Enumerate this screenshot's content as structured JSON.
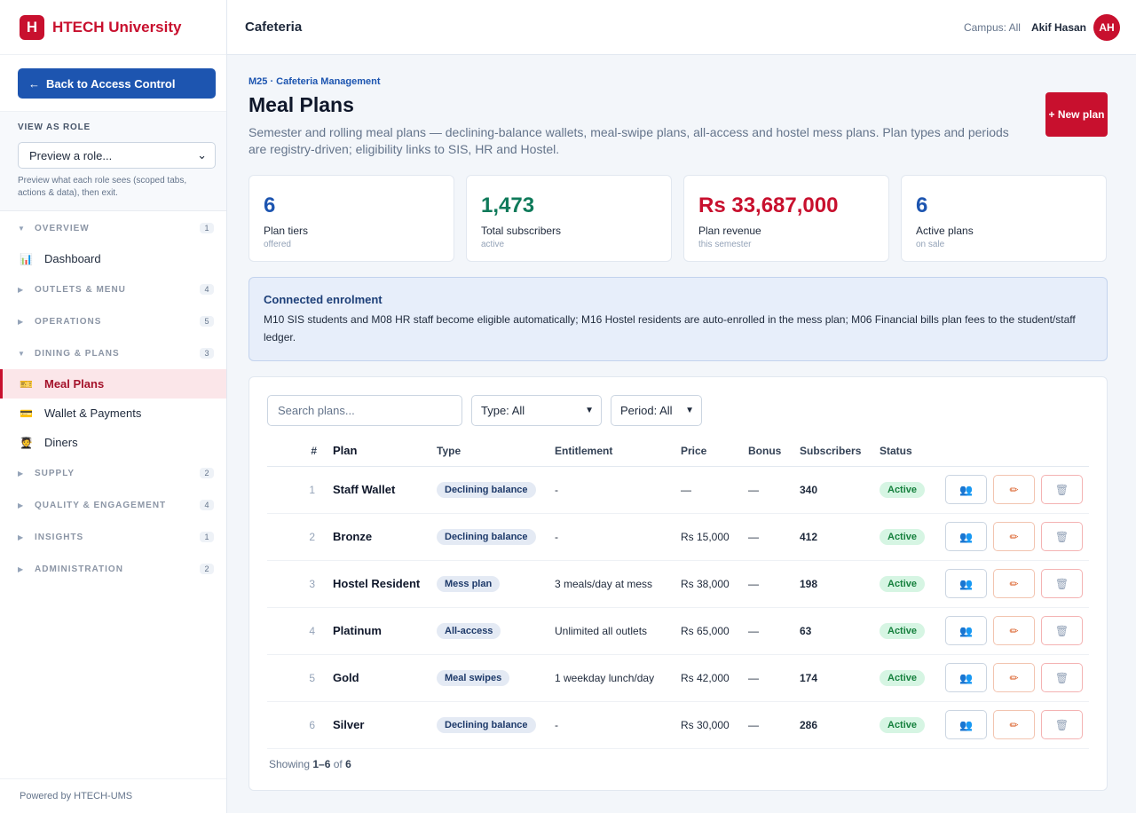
{
  "brand": {
    "logo_letter": "H",
    "name": "HTECH University"
  },
  "sidebar": {
    "back_label": "Back to Access Control",
    "role_title": "VIEW AS ROLE",
    "role_select": "Preview a role...",
    "role_hint": "Preview what each role sees (scoped tabs, actions & data), then exit.",
    "powered_by": "Powered by HTECH-UMS",
    "sections": [
      {
        "label": "OVERVIEW",
        "count": "1",
        "expanded": true,
        "items": [
          {
            "label": "Dashboard",
            "icon": "chart-icon",
            "glyph": "📊"
          }
        ]
      },
      {
        "label": "OUTLETS & MENU",
        "count": "4",
        "expanded": false,
        "items": []
      },
      {
        "label": "OPERATIONS",
        "count": "5",
        "expanded": false,
        "items": []
      },
      {
        "label": "DINING & PLANS",
        "count": "3",
        "expanded": true,
        "items": [
          {
            "label": "Meal Plans",
            "icon": "ticket-icon",
            "glyph": "🎫",
            "active": true
          },
          {
            "label": "Wallet & Payments",
            "icon": "card-icon",
            "glyph": "💳"
          },
          {
            "label": "Diners",
            "icon": "student-icon",
            "glyph": "🧑‍🎓"
          }
        ]
      },
      {
        "label": "SUPPLY",
        "count": "2",
        "expanded": false,
        "items": []
      },
      {
        "label": "QUALITY & ENGAGEMENT",
        "count": "4",
        "expanded": false,
        "items": []
      },
      {
        "label": "INSIGHTS",
        "count": "1",
        "expanded": false,
        "items": []
      },
      {
        "label": "ADMINISTRATION",
        "count": "2",
        "expanded": false,
        "items": []
      }
    ]
  },
  "topbar": {
    "title": "Cafeteria",
    "campus": "Campus: All",
    "user": "Akif Hasan",
    "avatar": "AH"
  },
  "page": {
    "module": "M25 · Cafeteria Management",
    "title": "Meal Plans",
    "description": "Semester and rolling meal plans — declining-balance wallets, meal-swipe plans, all-access and hostel mess plans. Plan types and periods are registry-driven; eligibility links to SIS, HR and Hostel.",
    "new_button": "+ New plan"
  },
  "stats": [
    {
      "value": "6",
      "label": "Plan tiers",
      "sub": "offered",
      "color": "#1d55b0"
    },
    {
      "value": "1,473",
      "label": "Total subscribers",
      "sub": "active",
      "color": "#0f7a5a"
    },
    {
      "value": "Rs 33,687,000",
      "label": "Plan revenue",
      "sub": "this semester",
      "color": "#c8102e"
    },
    {
      "value": "6",
      "label": "Active plans",
      "sub": "on sale",
      "color": "#1d55b0"
    }
  ],
  "notice": {
    "title": "Connected enrolment",
    "text": "M10 SIS students and M08 HR staff become eligible automatically; M16 Hostel residents are auto-enrolled in the mess plan; M06 Financial bills plan fees to the student/staff ledger."
  },
  "filters": {
    "search_placeholder": "Search plans...",
    "type": "Type: All",
    "period": "Period: All"
  },
  "table": {
    "headers": {
      "num": "#",
      "plan": "Plan",
      "type": "Type",
      "entitlement": "Entitlement",
      "price": "Price",
      "bonus": "Bonus",
      "subscribers": "Subscribers",
      "status": "Status"
    },
    "rows": [
      {
        "num": "1",
        "plan": "Staff Wallet",
        "type": "Declining balance",
        "entitlement": "-",
        "price": "—",
        "bonus": "—",
        "subscribers": "340",
        "status": "Active"
      },
      {
        "num": "2",
        "plan": "Bronze",
        "type": "Declining balance",
        "entitlement": "-",
        "price": "Rs 15,000",
        "bonus": "—",
        "subscribers": "412",
        "status": "Active"
      },
      {
        "num": "3",
        "plan": "Hostel Resident",
        "type": "Mess plan",
        "entitlement": "3 meals/day at mess",
        "price": "Rs 38,000",
        "bonus": "—",
        "subscribers": "198",
        "status": "Active"
      },
      {
        "num": "4",
        "plan": "Platinum",
        "type": "All-access",
        "entitlement": "Unlimited all outlets",
        "price": "Rs 65,000",
        "bonus": "—",
        "subscribers": "63",
        "status": "Active"
      },
      {
        "num": "5",
        "plan": "Gold",
        "type": "Meal swipes",
        "entitlement": "1 weekday lunch/day",
        "price": "Rs 42,000",
        "bonus": "—",
        "subscribers": "174",
        "status": "Active"
      },
      {
        "num": "6",
        "plan": "Silver",
        "type": "Declining balance",
        "entitlement": "-",
        "price": "Rs 30,000",
        "bonus": "—",
        "subscribers": "286",
        "status": "Active"
      }
    ],
    "footer": {
      "prefix": "Showing",
      "range": "1–6",
      "of": "of",
      "total": "6"
    }
  }
}
